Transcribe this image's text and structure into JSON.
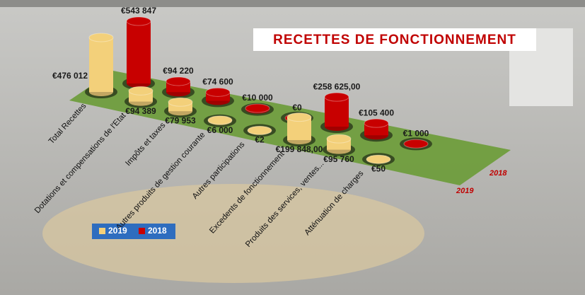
{
  "chart_data": {
    "type": "bar",
    "title": "RECETTES DE FONCTIONNEMENT",
    "categories": [
      "Total Recettes",
      "Dotations et compensations de l'Etat",
      "Impôts et taxes",
      "Autres produits de gestion courante",
      "Autres participations",
      "Excedents de fonctionnement",
      "Produits des services, ventes...",
      "Atténuation de charges"
    ],
    "series": [
      {
        "name": "2019",
        "color": "#f3d07a",
        "values": [
          476012,
          94389,
          79953,
          6000,
          2,
          199848,
          95760,
          50
        ],
        "value_labels": [
          "€476 012",
          "€94 389",
          "€79 953",
          "€6 000",
          "€2",
          "€199 848,00",
          "€95 760",
          "€50"
        ]
      },
      {
        "name": "2018",
        "color": "#c80000",
        "values": [
          543847,
          94220,
          74600,
          10000,
          0,
          258625,
          105400,
          1000
        ],
        "value_labels": [
          "€543 847",
          "€94 220",
          "€74 600",
          "€10 000",
          "€0",
          "€258 625,00",
          "€105 400",
          "€1 000"
        ]
      }
    ],
    "legend": "bottom-left"
  }
}
